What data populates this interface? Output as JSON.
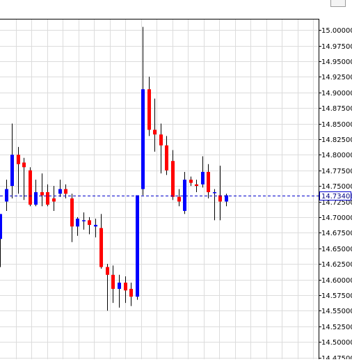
{
  "chart_data": {
    "type": "candlestick",
    "title": "",
    "xlabel": "",
    "ylabel": "",
    "ylim": [
      14.4725,
      15.0125
    ],
    "y_ticks": [
      "15.00000",
      "14.97500",
      "14.95000",
      "14.92500",
      "14.90000",
      "14.87500",
      "14.85000",
      "14.82500",
      "14.80000",
      "14.77500",
      "14.75000",
      "14.72500",
      "14.70000",
      "14.67500",
      "14.65000",
      "14.62500",
      "14.60000",
      "14.57500",
      "14.55000",
      "14.52500",
      "14.50000",
      "14.47500"
    ],
    "current_price": "14.73400",
    "grid": true,
    "up_color": "#0000ff",
    "down_color": "#ff0000",
    "candles": [
      {
        "o": 14.665,
        "h": 14.705,
        "l": 14.62,
        "c": 14.705
      },
      {
        "o": 14.725,
        "h": 14.76,
        "l": 14.71,
        "c": 14.745
      },
      {
        "o": 14.75,
        "h": 14.85,
        "l": 14.73,
        "c": 14.8
      },
      {
        "o": 14.8,
        "h": 14.8125,
        "l": 14.7375,
        "c": 14.785
      },
      {
        "o": 14.7875,
        "h": 14.795,
        "l": 14.7275,
        "c": 14.78
      },
      {
        "o": 14.775,
        "h": 14.78,
        "l": 14.7175,
        "c": 14.72
      },
      {
        "o": 14.72,
        "h": 14.76,
        "l": 14.7175,
        "c": 14.74
      },
      {
        "o": 14.74,
        "h": 14.77,
        "l": 14.7175,
        "c": 14.735
      },
      {
        "o": 14.74,
        "h": 14.7525,
        "l": 14.7175,
        "c": 14.72
      },
      {
        "o": 14.73,
        "h": 14.75,
        "l": 14.71,
        "c": 14.725
      },
      {
        "o": 14.7375,
        "h": 14.76,
        "l": 14.7325,
        "c": 14.745
      },
      {
        "o": 14.745,
        "h": 14.7525,
        "l": 14.73,
        "c": 14.7375
      },
      {
        "o": 14.73,
        "h": 14.7375,
        "l": 14.66,
        "c": 14.685
      },
      {
        "o": 14.685,
        "h": 14.7,
        "l": 14.67,
        "c": 14.6975
      },
      {
        "o": 14.695,
        "h": 14.7075,
        "l": 14.68,
        "c": 14.695
      },
      {
        "o": 14.695,
        "h": 14.7,
        "l": 14.6725,
        "c": 14.6875
      },
      {
        "o": 14.685,
        "h": 14.6975,
        "l": 14.6675,
        "c": 14.6875
      },
      {
        "o": 14.6825,
        "h": 14.705,
        "l": 14.6175,
        "c": 14.62
      },
      {
        "o": 14.62,
        "h": 14.625,
        "l": 14.55,
        "c": 14.6075
      },
      {
        "o": 14.6075,
        "h": 14.6225,
        "l": 14.5625,
        "c": 14.585
      },
      {
        "o": 14.585,
        "h": 14.6075,
        "l": 14.555,
        "c": 14.595
      },
      {
        "o": 14.595,
        "h": 14.605,
        "l": 14.5625,
        "c": 14.5825
      },
      {
        "o": 14.585,
        "h": 14.595,
        "l": 14.5575,
        "c": 14.5725
      },
      {
        "o": 14.5725,
        "h": 14.735,
        "l": 14.5675,
        "c": 14.735
      },
      {
        "o": 14.745,
        "h": 15.005,
        "l": 14.735,
        "c": 14.905
      },
      {
        "o": 14.905,
        "h": 14.925,
        "l": 14.83,
        "c": 14.84
      },
      {
        "o": 14.84,
        "h": 14.89,
        "l": 14.805,
        "c": 14.8325
      },
      {
        "o": 14.8325,
        "h": 14.85,
        "l": 14.77,
        "c": 14.815
      },
      {
        "o": 14.815,
        "h": 14.83,
        "l": 14.7675,
        "c": 14.775
      },
      {
        "o": 14.79,
        "h": 14.8075,
        "l": 14.7275,
        "c": 14.7325
      },
      {
        "o": 14.7325,
        "h": 14.745,
        "l": 14.7175,
        "c": 14.725
      },
      {
        "o": 14.71,
        "h": 14.7725,
        "l": 14.705,
        "c": 14.76
      },
      {
        "o": 14.76,
        "h": 14.765,
        "l": 14.75,
        "c": 14.755
      },
      {
        "o": 14.7525,
        "h": 14.76,
        "l": 14.74,
        "c": 14.75
      },
      {
        "o": 14.7525,
        "h": 14.7975,
        "l": 14.7475,
        "c": 14.7725
      },
      {
        "o": 14.7725,
        "h": 14.785,
        "l": 14.73,
        "c": 14.74
      },
      {
        "o": 14.74,
        "h": 14.745,
        "l": 14.695,
        "c": 14.74
      },
      {
        "o": 14.735,
        "h": 14.7825,
        "l": 14.695,
        "c": 14.725
      },
      {
        "o": 14.725,
        "h": 14.7375,
        "l": 14.7175,
        "c": 14.735
      }
    ]
  }
}
